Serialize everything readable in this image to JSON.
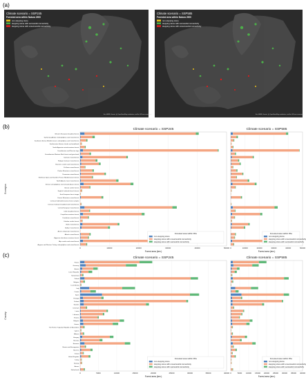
{
  "colors": {
    "non_stepping": "#4f81bd",
    "unsuccessful": "#f4a582",
    "successful": "#5fb878",
    "map_non_stepping": "#f0c419",
    "map_unsuccessful": "#e41a1c",
    "map_successful": "#4daf4a",
    "map_background": "#2b2b2b"
  },
  "panel_a": {
    "letter": "(a)",
    "maps": [
      {
        "title": "Climate scenario = SSP245",
        "subtitle": "Forested area within Natura 2000",
        "legend": [
          "non-stepping stone",
          "stepping stone with successful connectivity",
          "stepping stone with unsuccessful connectivity"
        ],
        "attribution": "Esri, HERE, Garmin, (c) OpenStreetMap contributors, and the GIS user community"
      },
      {
        "title": "Climate scenario = SSP585",
        "subtitle": "Forested area within Natura 2000",
        "legend": [
          "non-stepping stone",
          "stepping stone with successful connectivity",
          "stepping stone with unsuccessful connectivity"
        ],
        "attribution": "Esri, HERE, Garmin, (c) OpenStreetMap contributors, and the GIS user community"
      }
    ]
  },
  "chart_data": [
    {
      "type": "bar",
      "stacked": true,
      "orientation": "horizontal",
      "panel": "(b)",
      "title_left": "Climate scenario = SSP245",
      "title_right": "Climate scenario = SSP585",
      "ylabel": "Ecoregion",
      "xlabel": "Forest area (km²)",
      "xlim_left": [
        0,
        50000
      ],
      "xticks_left": [
        "0",
        "10000",
        "20000",
        "30000",
        "40000",
        "50000"
      ],
      "xlim_right": [
        0,
        50000
      ],
      "xticks_right": [
        "0",
        "10000",
        "20000",
        "30000",
        "40000",
        "50000"
      ],
      "legend_title": "Forested area within PAs",
      "legend": [
        "non-stepping stone",
        "stepping stone with unsuccessful connectivity",
        "stepping stone with successful connectivity"
      ],
      "categories": [
        "Western European broadleaf forests",
        "Tyrrhenian-Adriatic Sclerophyllous and mixed forests",
        "Southwest Iberian Mediterranean sclerophyllous and mixed forests",
        "Southeastern Iberian shrubs and woodlands",
        "South Appenine mixed montane forests",
        "Scandinavian and Russian taiga",
        "Scandinavian Montane Birch forest and grasslands",
        "Sarmatic mixed forests",
        "Rodope montane mixed forests",
        "Pyrenees conifer and mixed forests",
        "Po Basin mixed forests",
        "Pindus Mountains mixed forests",
        "Pannonian mixed forests",
        "Northeast Spain and Southern France Mediterranean forests",
        "North Atlantic moist mixed forests",
        "Iberian sclerophyllous and semi-deciduous forests",
        "Iberian conifer forests",
        "English Lowlands beech forests",
        "East European forest steppe",
        "Dinaric Mountains mixed forests",
        "Crimean Submediterranean forest complex",
        "Corsican montane broadleaf and mixed forests",
        "Central European mixed forests",
        "Celtic broadleaf forests",
        "Carpathian montane forests",
        "Cantabrian mixed forests",
        "Caledon conifer forests",
        "Baltic mixed forests",
        "Balkan mixed forests",
        "Azores temperate mixed forests",
        "Atlantic mixed forests",
        "Appenine deciduous montane forests",
        "Alps conifer and mixed forests",
        "Aegean and Western Turkey sclerophyllous and mixed forests"
      ],
      "series_left": [
        {
          "name": "non-stepping stone",
          "values": [
            1500,
            200,
            100,
            0,
            100,
            1000,
            200,
            800,
            300,
            400,
            100,
            200,
            300,
            100,
            300,
            1200,
            200,
            0,
            0,
            300,
            0,
            0,
            1500,
            100,
            1000,
            200,
            50,
            800,
            500,
            0,
            200,
            200,
            1000,
            100
          ]
        },
        {
          "name": "stepping stone with unsuccessful connectivity",
          "values": [
            38000,
            4000,
            2000,
            500,
            1500,
            46000,
            3000,
            15000,
            5000,
            6000,
            1500,
            4000,
            8000,
            4000,
            12000,
            16000,
            3000,
            600,
            200,
            7000,
            50,
            400,
            30000,
            3000,
            20000,
            2500,
            700,
            12000,
            9000,
            100,
            3000,
            2500,
            25000,
            2000
          ]
        },
        {
          "name": "stepping stone with successful connectivity",
          "values": [
            1000,
            800,
            400,
            100,
            300,
            300,
            500,
            500,
            600,
            600,
            200,
            500,
            500,
            300,
            800,
            1000,
            300,
            100,
            50,
            600,
            0,
            100,
            1500,
            300,
            1000,
            300,
            100,
            600,
            700,
            0,
            400,
            300,
            1500,
            300
          ]
        }
      ],
      "series_right": [
        {
          "name": "non-stepping stone",
          "values": [
            1500,
            200,
            100,
            0,
            100,
            1200,
            200,
            800,
            300,
            400,
            100,
            200,
            300,
            100,
            300,
            1200,
            200,
            0,
            0,
            300,
            0,
            0,
            1500,
            100,
            1000,
            200,
            50,
            800,
            500,
            0,
            200,
            200,
            1000,
            100
          ]
        },
        {
          "name": "stepping stone with unsuccessful connectivity",
          "values": [
            37000,
            3800,
            1900,
            500,
            1400,
            46500,
            2800,
            14500,
            4800,
            5800,
            1400,
            3800,
            7800,
            3800,
            11500,
            15500,
            2900,
            550,
            200,
            6800,
            50,
            400,
            29000,
            2900,
            19500,
            2400,
            650,
            11500,
            8700,
            100,
            2900,
            2400,
            24000,
            1900
          ]
        },
        {
          "name": "stepping stone with successful connectivity",
          "values": [
            1500,
            1000,
            500,
            100,
            400,
            300,
            700,
            800,
            800,
            800,
            300,
            700,
            700,
            400,
            1100,
            1300,
            400,
            150,
            50,
            800,
            0,
            150,
            2200,
            400,
            1500,
            400,
            200,
            900,
            900,
            0,
            500,
            400,
            2200,
            400
          ]
        }
      ]
    },
    {
      "type": "bar",
      "stacked": true,
      "orientation": "horizontal",
      "panel": "(c)",
      "title_left": "Climate scenario = SSP245",
      "title_right": "Climate scenario = SSP585",
      "ylabel": "Country",
      "xlabel": "Forest area (km²)",
      "xlim_left": [
        0,
        40000
      ],
      "xticks_left": [
        "0",
        "5000",
        "10000",
        "15000",
        "20000",
        "25000",
        "30000",
        "35000",
        "40000"
      ],
      "xlim_right": [
        0,
        40000
      ],
      "xticks_right": [
        "0",
        "5000",
        "10000",
        "15000",
        "20000",
        "25000",
        "30000",
        "35000",
        "40000"
      ],
      "legend_title": "Forested area within PAs",
      "legend": [
        "non-stepping stone",
        "stepping stone with unsuccessful connectivity",
        "stepping stone with successful connectivity"
      ],
      "categories": [
        "France",
        "Germany",
        "Austria",
        "Czech Republic",
        "Switzerland",
        "Poland",
        "Belgium",
        "Luxembourg",
        "Italy",
        "Croatia",
        "Spain",
        "Portugal",
        "Finland",
        "Sweden",
        "Denmark",
        "Latvia",
        "Lithuania",
        "Estonia",
        "Bulgaria",
        "Greece",
        "The Former Yugoslav Republic of Macedonia",
        "Cyprus",
        "Albania",
        "Hungary",
        "Slovakia",
        "Romania",
        "Bosnia and Herzegovina",
        "Slovenia",
        "Ireland",
        "United Kingdom",
        "Turkey",
        "Norway",
        "Azores",
        "Netherlands"
      ],
      "series_left": [
        {
          "name": "non-stepping stone",
          "values": [
            1200,
            1500,
            600,
            300,
            100,
            1200,
            100,
            50,
            2500,
            300,
            6000,
            800,
            1000,
            1000,
            100,
            200,
            200,
            300,
            800,
            900,
            100,
            50,
            100,
            600,
            300,
            1200,
            100,
            300,
            100,
            300,
            50,
            50,
            0,
            100
          ]
        },
        {
          "name": "stepping stone with unsuccessful connectivity",
          "values": [
            15000,
            11000,
            3000,
            2000,
            500,
            29000,
            800,
            200,
            9000,
            2500,
            24000,
            5000,
            28000,
            17000,
            1500,
            7000,
            6000,
            4500,
            10000,
            8000,
            800,
            200,
            700,
            7500,
            5000,
            11000,
            1200,
            2500,
            700,
            2000,
            300,
            400,
            50,
            900
          ]
        },
        {
          "name": "stepping stone with successful connectivity",
          "values": [
            3500,
            3000,
            1200,
            1000,
            300,
            2000,
            400,
            100,
            3500,
            1500,
            2500,
            600,
            500,
            800,
            300,
            400,
            400,
            300,
            1200,
            1500,
            300,
            100,
            300,
            1000,
            800,
            1500,
            300,
            600,
            200,
            500,
            100,
            100,
            0,
            300
          ]
        }
      ],
      "series_right": [
        {
          "name": "non-stepping stone",
          "values": [
            1200,
            1500,
            600,
            300,
            100,
            1200,
            100,
            50,
            2500,
            300,
            6000,
            800,
            1000,
            1000,
            100,
            200,
            200,
            300,
            800,
            900,
            100,
            50,
            100,
            600,
            300,
            1200,
            100,
            300,
            100,
            300,
            50,
            50,
            0,
            100
          ]
        },
        {
          "name": "stepping stone with unsuccessful connectivity",
          "values": [
            14500,
            10500,
            2900,
            1900,
            500,
            28500,
            800,
            200,
            8800,
            2400,
            23500,
            4900,
            27500,
            16500,
            1400,
            6800,
            5800,
            4400,
            9800,
            7800,
            800,
            200,
            700,
            7300,
            4900,
            10800,
            1200,
            2400,
            700,
            1900,
            300,
            400,
            50,
            900
          ]
        },
        {
          "name": "stepping stone with successful connectivity",
          "values": [
            4200,
            3600,
            1400,
            1200,
            300,
            2600,
            500,
            100,
            4000,
            1700,
            3000,
            700,
            700,
            1100,
            400,
            500,
            500,
            400,
            1500,
            1800,
            300,
            100,
            400,
            1200,
            900,
            1900,
            400,
            700,
            300,
            600,
            100,
            100,
            0,
            300
          ]
        }
      ]
    }
  ]
}
